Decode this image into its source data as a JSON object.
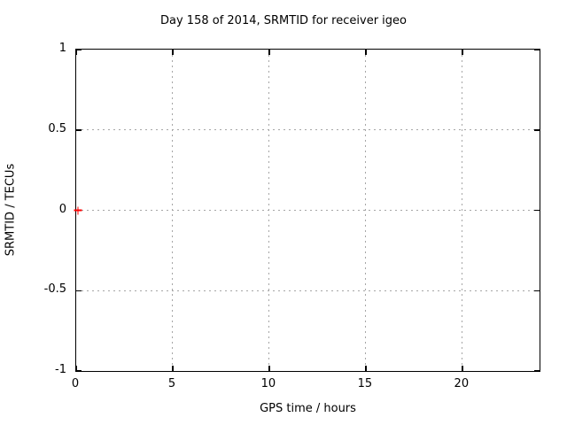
{
  "chart_data": {
    "type": "scatter",
    "title": "Day 158 of 2014, SRMTID for receiver igeo",
    "xlabel": "GPS time / hours",
    "ylabel": "SRMTID / TECUs",
    "xlim": [
      0,
      24
    ],
    "ylim": [
      -1,
      1
    ],
    "xticks": [
      0,
      5,
      10,
      15,
      20
    ],
    "xtick_labels": [
      "0",
      "5",
      "10",
      "15",
      "20"
    ],
    "yticks": [
      -1,
      -0.5,
      0,
      0.5,
      1
    ],
    "ytick_labels": [
      "-1",
      "-0.5",
      "0",
      "0.5",
      "1"
    ],
    "grid": true,
    "grid_style": "dotted",
    "legend": "none",
    "series": [
      {
        "name": "SRMTID",
        "marker": "plus",
        "color": "#ff0000",
        "points": [
          {
            "x": 0.1,
            "y": 0
          }
        ]
      }
    ],
    "colors": {
      "background": "#ffffff",
      "axis": "#000000",
      "grid": "#a6a6a6",
      "text": "#000000"
    }
  }
}
